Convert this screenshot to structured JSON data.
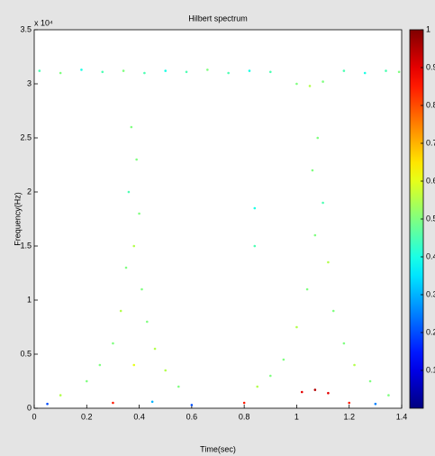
{
  "chart_data": {
    "type": "scatter",
    "title": "Hilbert spectrum",
    "x_label": "Time(sec)",
    "y_label": "Frequency(Hz)",
    "y_multiplier": "x 10⁴",
    "xlim": [
      0,
      1.4
    ],
    "xticks": [
      0,
      0.2,
      0.4,
      0.6,
      0.8,
      1,
      1.2,
      1.4
    ],
    "ylim": [
      0,
      3.5
    ],
    "yticks": [
      0,
      0.5,
      1,
      1.5,
      2,
      2.5,
      3,
      3.5
    ],
    "colormap": "jet",
    "clim": [
      0,
      1
    ],
    "cticks": [
      0.1,
      0.2,
      0.3,
      0.4,
      0.5,
      0.6,
      0.7,
      0.8,
      0.9,
      1
    ],
    "x": [
      0.02,
      0.1,
      0.18,
      0.26,
      0.34,
      0.42,
      0.5,
      0.58,
      0.66,
      0.74,
      0.82,
      0.9,
      1.0,
      1.05,
      1.1,
      1.18,
      1.26,
      1.34,
      1.39,
      0.37,
      0.39,
      0.36,
      0.4,
      0.38,
      0.35,
      0.41,
      0.33,
      0.43,
      0.3,
      0.46,
      0.25,
      0.5,
      0.2,
      0.55,
      0.1,
      0.38,
      1.08,
      1.06,
      1.1,
      1.07,
      1.12,
      1.04,
      1.14,
      1.0,
      1.18,
      0.95,
      1.22,
      0.9,
      1.28,
      0.85,
      1.35,
      0.84,
      0.84,
      0.05,
      0.3,
      0.6,
      0.8,
      1.02,
      1.07,
      1.12,
      1.2,
      0.45,
      1.3
    ],
    "y": [
      3.12,
      3.1,
      3.13,
      3.11,
      3.12,
      3.1,
      3.12,
      3.11,
      3.13,
      3.1,
      3.12,
      3.11,
      3.0,
      2.98,
      3.02,
      3.12,
      3.1,
      3.12,
      3.11,
      2.6,
      2.3,
      2.0,
      1.8,
      1.5,
      1.3,
      1.1,
      0.9,
      0.8,
      0.6,
      0.55,
      0.4,
      0.35,
      0.25,
      0.2,
      0.12,
      0.4,
      2.5,
      2.2,
      1.9,
      1.6,
      1.35,
      1.1,
      0.9,
      0.75,
      0.6,
      0.45,
      0.4,
      0.3,
      0.25,
      0.2,
      0.12,
      1.5,
      1.85,
      0.04,
      0.05,
      0.03,
      0.05,
      0.15,
      0.17,
      0.14,
      0.05,
      0.06,
      0.04
    ],
    "c": [
      0.45,
      0.5,
      0.4,
      0.45,
      0.5,
      0.45,
      0.4,
      0.45,
      0.5,
      0.45,
      0.4,
      0.45,
      0.5,
      0.55,
      0.5,
      0.45,
      0.4,
      0.45,
      0.5,
      0.5,
      0.5,
      0.45,
      0.5,
      0.55,
      0.5,
      0.5,
      0.55,
      0.5,
      0.5,
      0.55,
      0.5,
      0.55,
      0.5,
      0.5,
      0.55,
      0.6,
      0.5,
      0.5,
      0.45,
      0.5,
      0.55,
      0.5,
      0.5,
      0.55,
      0.5,
      0.5,
      0.55,
      0.5,
      0.5,
      0.55,
      0.5,
      0.45,
      0.4,
      0.2,
      0.85,
      0.2,
      0.85,
      0.9,
      0.95,
      0.9,
      0.85,
      0.3,
      0.25
    ]
  }
}
